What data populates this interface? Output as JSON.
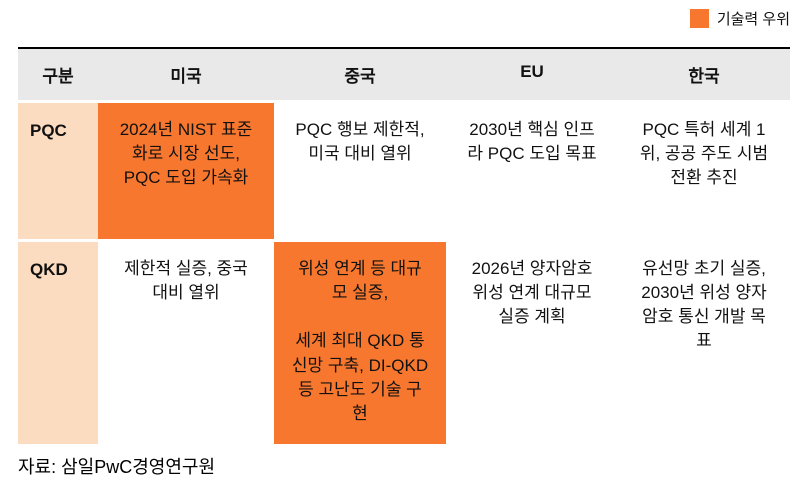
{
  "legend": {
    "label": "기술력 우위",
    "color": "#F8772E"
  },
  "colors": {
    "highlight": "#F8772E",
    "header_bg": "#E9E9E9",
    "row_label_bg": "#FCDCC0"
  },
  "source": "자료: 삼일PwC경영연구원",
  "chart_data": {
    "type": "table",
    "title": "",
    "legend": [
      {
        "label": "기술력 우위",
        "color": "#F8772E"
      }
    ],
    "columns": [
      "구분",
      "미국",
      "중국",
      "EU",
      "한국"
    ],
    "rows": [
      {
        "label": "PQC",
        "cells": [
          {
            "country": "미국",
            "text": "2024년 NIST 표준화로 시장 선도, PQC 도입 가속화",
            "highlight": true
          },
          {
            "country": "중국",
            "text": "PQC 행보 제한적, 미국 대비 열위",
            "highlight": false
          },
          {
            "country": "EU",
            "text": "2030년 핵심 인프라 PQC 도입 목표",
            "highlight": false
          },
          {
            "country": "한국",
            "text": "PQC 특허 세계 1위, 공공 주도 시범전환 추진",
            "highlight": false
          }
        ]
      },
      {
        "label": "QKD",
        "cells": [
          {
            "country": "미국",
            "text": "제한적 실증, 중국 대비 열위",
            "highlight": false
          },
          {
            "country": "중국",
            "text": "위성 연계 등 대규모 실증,\n\n세계 최대 QKD 통신망 구축, DI-QKD 등 고난도 기술 구현",
            "highlight": true
          },
          {
            "country": "EU",
            "text": "2026년 양자암호 위성 연계 대규모 실증 계획",
            "highlight": false
          },
          {
            "country": "한국",
            "text": "유선망 초기 실증, 2030년 위성 양자암호 통신 개발 목표",
            "highlight": false
          }
        ]
      }
    ]
  }
}
